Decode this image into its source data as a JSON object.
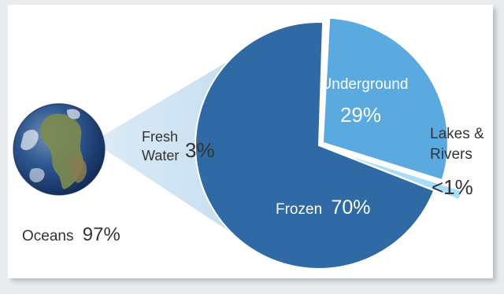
{
  "chart_data": {
    "type": "pie",
    "series": [
      {
        "slices": [
          {
            "label": "Frozen",
            "value": 70,
            "value_label": "70%",
            "color": "#2f6aa5"
          },
          {
            "label": "Underground",
            "value": 29,
            "value_label": "29%",
            "color": "#5aa9df"
          },
          {
            "label": "Lakes & Rivers",
            "value": 1,
            "value_label": "<1%",
            "color": "#a9dcf6"
          }
        ]
      }
    ],
    "context": {
      "oceans_label": "Oceans",
      "oceans_value": "97%",
      "fresh_label_line1": "Fresh",
      "fresh_label_line2": "Water",
      "fresh_value": "3%"
    },
    "colors": {
      "earth_ocean": "#1f4a8a",
      "beam": "#cfe4f3",
      "text": "#333333",
      "inner_text": "#ffffff"
    }
  }
}
